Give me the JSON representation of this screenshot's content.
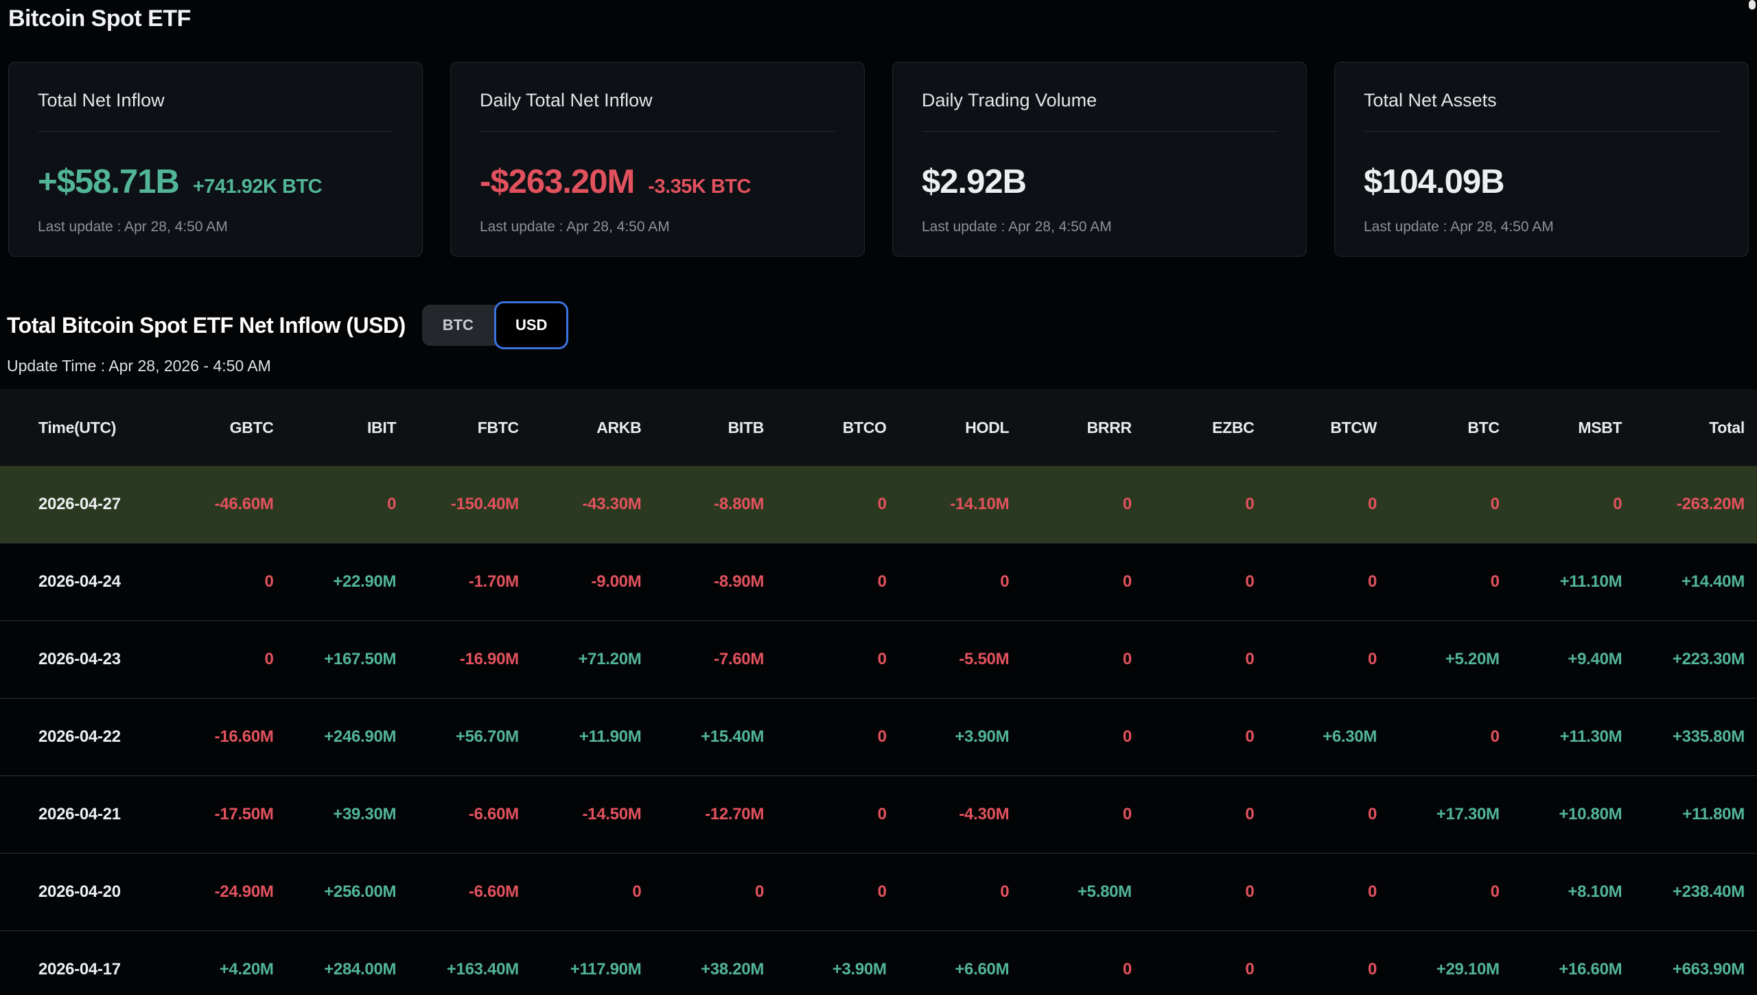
{
  "page": {
    "title": "Bitcoin Spot ETF"
  },
  "colors": {
    "green": "#52b597",
    "red": "#e2525e",
    "white": "#eceef0",
    "highlight_row_bg": "#2a391f",
    "toggle_selected_border": "#3b73e0"
  },
  "stat_cards": [
    {
      "label": "Total Net Inflow",
      "value": "+$58.71B",
      "value_color": "green",
      "sub": "+741.92K BTC",
      "sub_color": "green",
      "last_update": "Last update : Apr 28, 4:50 AM"
    },
    {
      "label": "Daily Total Net Inflow",
      "value": "-$263.20M",
      "value_color": "red",
      "sub": "-3.35K BTC",
      "sub_color": "red",
      "last_update": "Last update : Apr 28, 4:50 AM"
    },
    {
      "label": "Daily Trading Volume",
      "value": "$2.92B",
      "value_color": "white",
      "sub": "",
      "sub_color": "white",
      "last_update": "Last update : Apr 28, 4:50 AM"
    },
    {
      "label": "Total Net Assets",
      "value": "$104.09B",
      "value_color": "white",
      "sub": "",
      "sub_color": "white",
      "last_update": "Last update : Apr 28, 4:50 AM"
    }
  ],
  "section": {
    "title": "Total Bitcoin Spot ETF Net Inflow (USD)",
    "toggle": {
      "options": [
        "BTC",
        "USD"
      ],
      "selected": "USD"
    },
    "update_time": "Update Time : Apr 28, 2026 - 4:50 AM"
  },
  "table": {
    "columns": [
      "Time(UTC)",
      "GBTC",
      "IBIT",
      "FBTC",
      "ARKB",
      "BITB",
      "BTCO",
      "HODL",
      "BRRR",
      "EZBC",
      "BTCW",
      "BTC",
      "MSBT",
      "Total"
    ],
    "rows": [
      {
        "date": "2026-04-27",
        "highlighted": true,
        "values": [
          "-46.60M",
          "0",
          "-150.40M",
          "-43.30M",
          "-8.80M",
          "0",
          "-14.10M",
          "0",
          "0",
          "0",
          "0",
          "0",
          "-263.20M"
        ]
      },
      {
        "date": "2026-04-24",
        "highlighted": false,
        "values": [
          "0",
          "+22.90M",
          "-1.70M",
          "-9.00M",
          "-8.90M",
          "0",
          "0",
          "0",
          "0",
          "0",
          "0",
          "+11.10M",
          "+14.40M"
        ]
      },
      {
        "date": "2026-04-23",
        "highlighted": false,
        "values": [
          "0",
          "+167.50M",
          "-16.90M",
          "+71.20M",
          "-7.60M",
          "0",
          "-5.50M",
          "0",
          "0",
          "0",
          "+5.20M",
          "+9.40M",
          "+223.30M"
        ]
      },
      {
        "date": "2026-04-22",
        "highlighted": false,
        "values": [
          "-16.60M",
          "+246.90M",
          "+56.70M",
          "+11.90M",
          "+15.40M",
          "0",
          "+3.90M",
          "0",
          "0",
          "+6.30M",
          "0",
          "+11.30M",
          "+335.80M"
        ]
      },
      {
        "date": "2026-04-21",
        "highlighted": false,
        "values": [
          "-17.50M",
          "+39.30M",
          "-6.60M",
          "-14.50M",
          "-12.70M",
          "0",
          "-4.30M",
          "0",
          "0",
          "0",
          "+17.30M",
          "+10.80M",
          "+11.80M"
        ]
      },
      {
        "date": "2026-04-20",
        "highlighted": false,
        "values": [
          "-24.90M",
          "+256.00M",
          "-6.60M",
          "0",
          "0",
          "0",
          "0",
          "+5.80M",
          "0",
          "0",
          "0",
          "+8.10M",
          "+238.40M"
        ]
      },
      {
        "date": "2026-04-17",
        "highlighted": false,
        "values": [
          "+4.20M",
          "+284.00M",
          "+163.40M",
          "+117.90M",
          "+38.20M",
          "+3.90M",
          "+6.60M",
          "0",
          "0",
          "0",
          "+29.10M",
          "+16.60M",
          "+663.90M"
        ]
      }
    ]
  }
}
